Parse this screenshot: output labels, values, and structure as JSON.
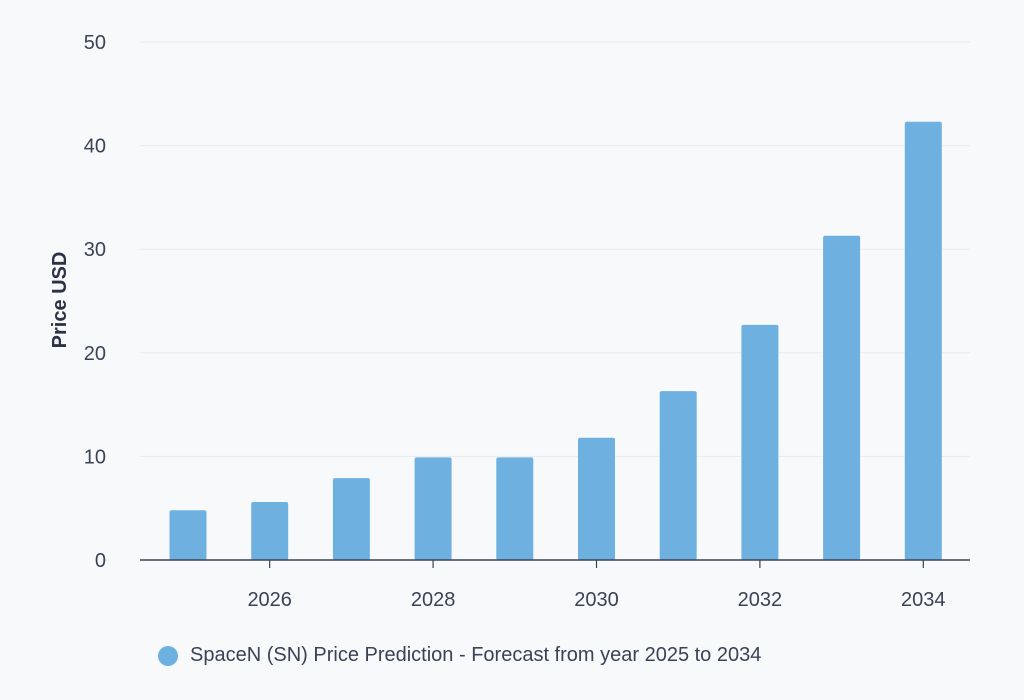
{
  "colors": {
    "bar": "#6eb1e1",
    "grid": "#e8ebef",
    "axis": "#3a4255",
    "text": "#3a4255"
  },
  "chart_data": {
    "type": "bar",
    "title": "",
    "xlabel": "",
    "ylabel": "Price USD",
    "ylim": [
      0,
      50
    ],
    "yticks": [
      0,
      10,
      20,
      30,
      40,
      50
    ],
    "xticks": [
      "2026",
      "2028",
      "2030",
      "2032",
      "2034"
    ],
    "categories": [
      "2025",
      "2026",
      "2027",
      "2028",
      "2029",
      "2030",
      "2031",
      "2032",
      "2033",
      "2034"
    ],
    "series": [
      {
        "name": "SpaceN (SN) Price Prediction - Forecast from year 2025 to 2034",
        "values": [
          4.8,
          5.6,
          7.9,
          9.9,
          9.9,
          11.8,
          16.3,
          22.7,
          31.3,
          42.3
        ]
      }
    ],
    "grid": true,
    "legend_position": "bottom"
  }
}
